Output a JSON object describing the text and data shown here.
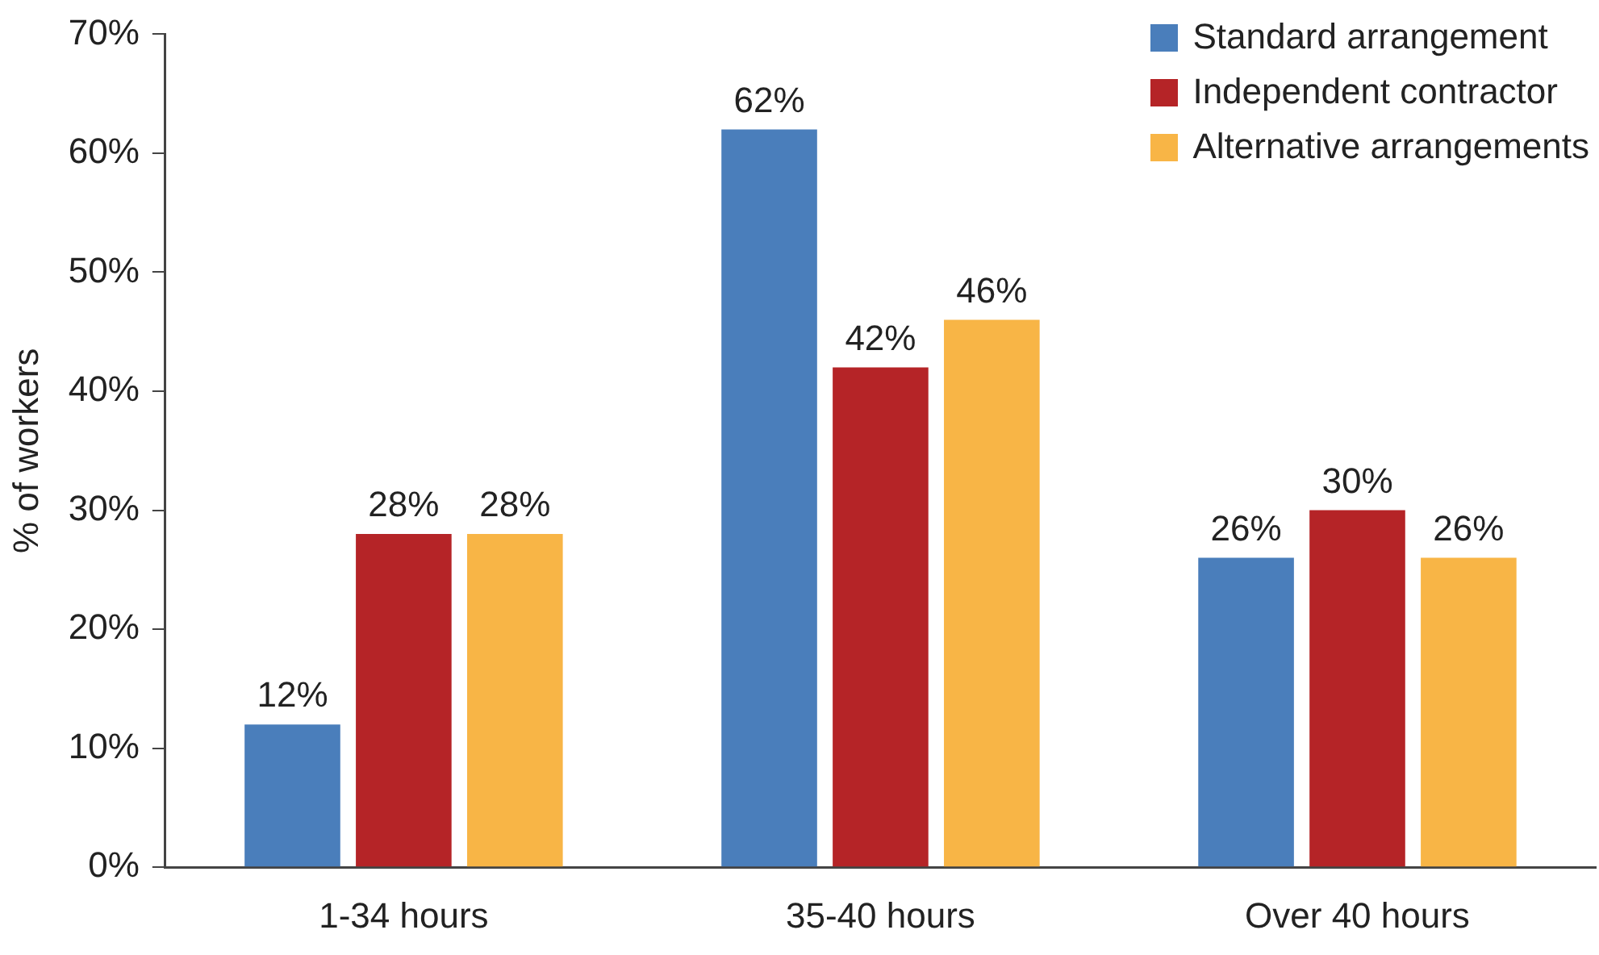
{
  "chart_data": {
    "type": "bar",
    "ylabel": "% of workers",
    "categories": [
      "1-34 hours",
      "35-40 hours",
      "Over 40 hours"
    ],
    "series": [
      {
        "name": "Standard arrangement",
        "color": "#4a7ebb",
        "values": [
          12,
          62,
          26
        ]
      },
      {
        "name": "Independent contractor",
        "color": "#b52427",
        "values": [
          28,
          42,
          30
        ]
      },
      {
        "name": "Alternative arrangements",
        "color": "#f8b546",
        "values": [
          28,
          46,
          26
        ]
      }
    ],
    "ylim": [
      0,
      70
    ],
    "yticks": [
      {
        "value": 0,
        "label": "0%"
      },
      {
        "value": 10,
        "label": "10%"
      },
      {
        "value": 20,
        "label": "20%"
      },
      {
        "value": 30,
        "label": "30%"
      },
      {
        "value": 40,
        "label": "40%"
      },
      {
        "value": 50,
        "label": "50%"
      },
      {
        "value": 60,
        "label": "60%"
      },
      {
        "value": 70,
        "label": "70%"
      }
    ],
    "value_labels": [
      [
        "12%",
        "62%",
        "26%"
      ],
      [
        "28%",
        "42%",
        "30%"
      ],
      [
        "28%",
        "46%",
        "26%"
      ]
    ],
    "legend": "top right",
    "grid": false
  }
}
